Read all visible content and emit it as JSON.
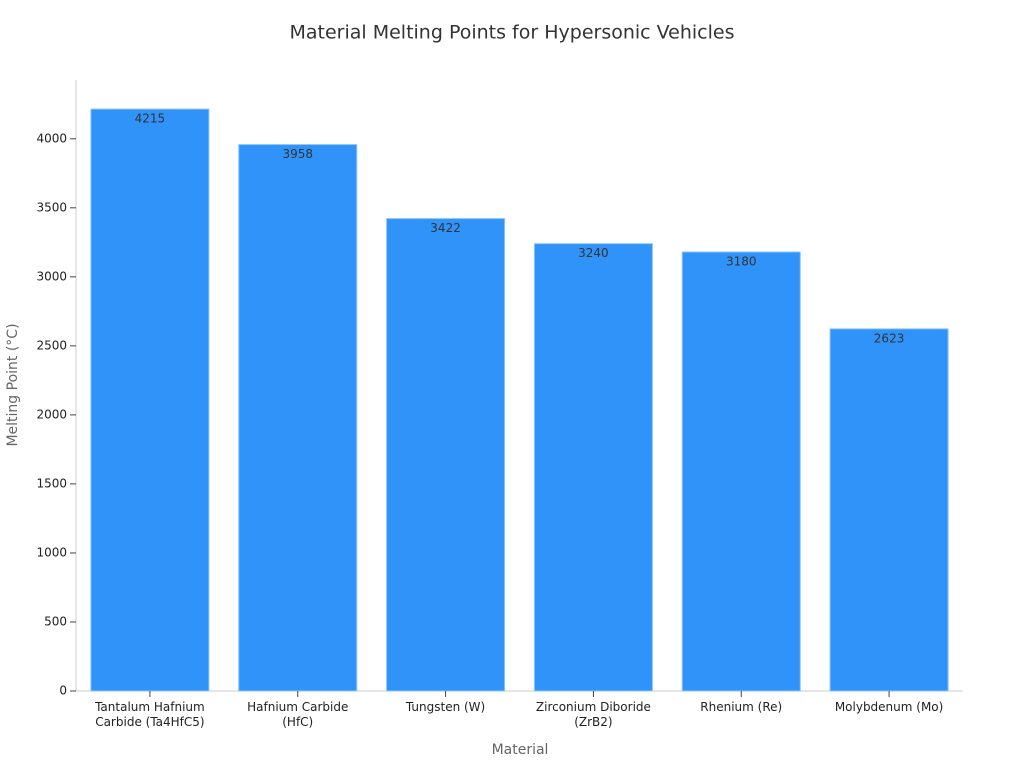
{
  "chart_data": {
    "type": "bar",
    "title": "Material Melting Points for Hypersonic Vehicles",
    "x_label": "Material",
    "y_label": "Melting Point (°C)",
    "categories": [
      "Tantalum Hafnium Carbide (Ta4HfC5)",
      "Hafnium Carbide (HfC)",
      "Tungsten (W)",
      "Zirconium Diboride (ZrB2)",
      "Rhenium (Re)",
      "Molybdenum (Mo)"
    ],
    "values": [
      4215,
      3958,
      3422,
      3240,
      3180,
      2623
    ],
    "color": "#2f93f9",
    "ylim": [
      0,
      4425.75
    ],
    "yticks": [
      0,
      500,
      1000,
      1500,
      2000,
      2500,
      3000,
      3500,
      4000
    ],
    "grid": false
  }
}
